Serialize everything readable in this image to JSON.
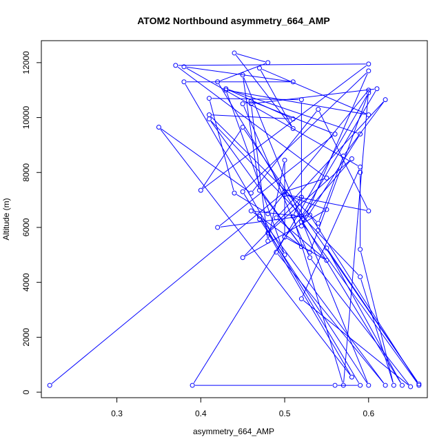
{
  "chart_data": {
    "type": "scatter",
    "title": "ATOM2 Northbound asymmetry_664_AMP",
    "xlabel": "asymmetry_664_AMP",
    "ylabel": "Altitude (m)",
    "xlim": [
      0.21,
      0.67
    ],
    "ylim": [
      -200,
      12800
    ],
    "xticks": [
      0.3,
      0.4,
      0.5,
      0.6
    ],
    "yticks": [
      0,
      2000,
      4000,
      6000,
      8000,
      10000,
      12000
    ],
    "grid": false,
    "connected": true,
    "series_color": "#0000ff",
    "points": [
      [
        0.22,
        250
      ],
      [
        0.5,
        7300
      ],
      [
        0.55,
        7800
      ],
      [
        0.37,
        11900
      ],
      [
        0.6,
        11950
      ],
      [
        0.4,
        7350
      ],
      [
        0.45,
        9650
      ],
      [
        0.66,
        300
      ],
      [
        0.55,
        5250
      ],
      [
        0.64,
        250
      ],
      [
        0.42,
        11300
      ],
      [
        0.48,
        12000
      ],
      [
        0.44,
        12350
      ],
      [
        0.51,
        9600
      ],
      [
        0.47,
        11800
      ],
      [
        0.6,
        10100
      ],
      [
        0.43,
        11000
      ],
      [
        0.5,
        5000
      ],
      [
        0.38,
        11300
      ],
      [
        0.51,
        11300
      ],
      [
        0.38,
        11850
      ],
      [
        0.59,
        8200
      ],
      [
        0.52,
        3400
      ],
      [
        0.65,
        200
      ],
      [
        0.53,
        4900
      ],
      [
        0.45,
        10500
      ],
      [
        0.46,
        10600
      ],
      [
        0.56,
        9400
      ],
      [
        0.42,
        6000
      ],
      [
        0.53,
        6450
      ],
      [
        0.66,
        250
      ],
      [
        0.52,
        6200
      ],
      [
        0.52,
        10650
      ],
      [
        0.41,
        10700
      ],
      [
        0.44,
        7250
      ],
      [
        0.48,
        6500
      ],
      [
        0.6,
        11000
      ],
      [
        0.57,
        250
      ],
      [
        0.51,
        6400
      ],
      [
        0.52,
        7100
      ],
      [
        0.45,
        4900
      ],
      [
        0.55,
        6650
      ],
      [
        0.5,
        7200
      ],
      [
        0.6,
        6600
      ],
      [
        0.54,
        10300
      ],
      [
        0.46,
        7250
      ],
      [
        0.35,
        9650
      ],
      [
        0.58,
        550
      ],
      [
        0.48,
        5800
      ],
      [
        0.58,
        8500
      ],
      [
        0.5,
        5650
      ],
      [
        0.5,
        8450
      ],
      [
        0.48,
        5500
      ],
      [
        0.46,
        10500
      ],
      [
        0.61,
        11050
      ],
      [
        0.52,
        6400
      ],
      [
        0.46,
        6600
      ],
      [
        0.53,
        5100
      ],
      [
        0.54,
        5900
      ],
      [
        0.6,
        10900
      ],
      [
        0.49,
        5100
      ],
      [
        0.62,
        250
      ],
      [
        0.47,
        6400
      ],
      [
        0.59,
        250
      ],
      [
        0.56,
        250
      ],
      [
        0.39,
        250
      ],
      [
        0.5,
        5650
      ],
      [
        0.55,
        4800
      ],
      [
        0.49,
        6350
      ],
      [
        0.62,
        10650
      ],
      [
        0.57,
        8600
      ],
      [
        0.54,
        6150
      ],
      [
        0.41,
        10100
      ],
      [
        0.51,
        9950
      ],
      [
        0.43,
        11050
      ],
      [
        0.59,
        9400
      ],
      [
        0.52,
        6050
      ],
      [
        0.6,
        11700
      ],
      [
        0.45,
        7300
      ],
      [
        0.47,
        6300
      ],
      [
        0.6,
        250
      ],
      [
        0.45,
        11550
      ],
      [
        0.47,
        7350
      ],
      [
        0.52,
        5300
      ],
      [
        0.41,
        9950
      ],
      [
        0.59,
        4200
      ],
      [
        0.63,
        250
      ],
      [
        0.59,
        5200
      ],
      [
        0.59,
        8000
      ]
    ]
  }
}
